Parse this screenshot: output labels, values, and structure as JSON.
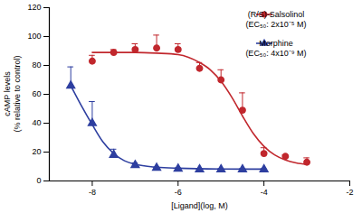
{
  "chart_data": {
    "type": "scatter",
    "x_label": "[Ligand](log, M)",
    "y_label": [
      "cAMP levels",
      "(% relative to control)"
    ],
    "xlim": [
      -9,
      -2
    ],
    "xticks": [
      -8,
      -6,
      -4,
      -2
    ],
    "ylim": [
      0,
      120
    ],
    "yticks": [
      0,
      20,
      40,
      60,
      80,
      100,
      120
    ],
    "grid": false,
    "legend": "upper right",
    "series": [
      {
        "name": "(R/S)-Salsolinol",
        "annotation": "(EC₅₀: 2x10⁻⁵ M)",
        "color": "#c1272d",
        "marker": "circle",
        "x": [
          -8,
          -7.5,
          -7,
          -6.5,
          -6,
          -5.5,
          -5,
          -4.5,
          -4,
          -3.5,
          -3
        ],
        "values": [
          83,
          89,
          91,
          92,
          91,
          78,
          70,
          49,
          19,
          17,
          13
        ],
        "errors": [
          4,
          2,
          4,
          9,
          4,
          4,
          7,
          12,
          4,
          1,
          3
        ],
        "fit": {
          "x": [
            -8,
            -7.5,
            -7,
            -6.5,
            -6,
            -5.5,
            -5.25,
            -5,
            -4.75,
            -4.5,
            -4.25,
            -4,
            -3.75,
            -3.5,
            -3.25,
            -3
          ],
          "values": [
            89,
            89,
            89,
            88.5,
            87.5,
            82,
            77,
            69,
            58,
            45,
            33,
            24,
            18,
            14.5,
            12.5,
            11.5
          ]
        }
      },
      {
        "name": "Morphine",
        "annotation": "(EC₅₀: 4x10⁻⁹ M)",
        "color": "#2e3fa0",
        "marker": "triangle",
        "x": [
          -8.5,
          -8,
          -7.5,
          -7,
          -6.5,
          -6,
          -5.5,
          -5,
          -4.5,
          -4
        ],
        "values": [
          66,
          40,
          18,
          11,
          9,
          8.5,
          8,
          8,
          8,
          8
        ],
        "errors": [
          13,
          15,
          4,
          1.5,
          0.5,
          0.5,
          0.5,
          0.5,
          0.5,
          0.5
        ],
        "fit": {
          "x": [
            -8.5,
            -8.25,
            -8,
            -7.75,
            -7.5,
            -7.25,
            -7,
            -6.5,
            -6,
            -5,
            -4
          ],
          "values": [
            66,
            52,
            39,
            27,
            19,
            14,
            11.5,
            9.5,
            8.8,
            8.3,
            8.2
          ]
        }
      }
    ]
  }
}
